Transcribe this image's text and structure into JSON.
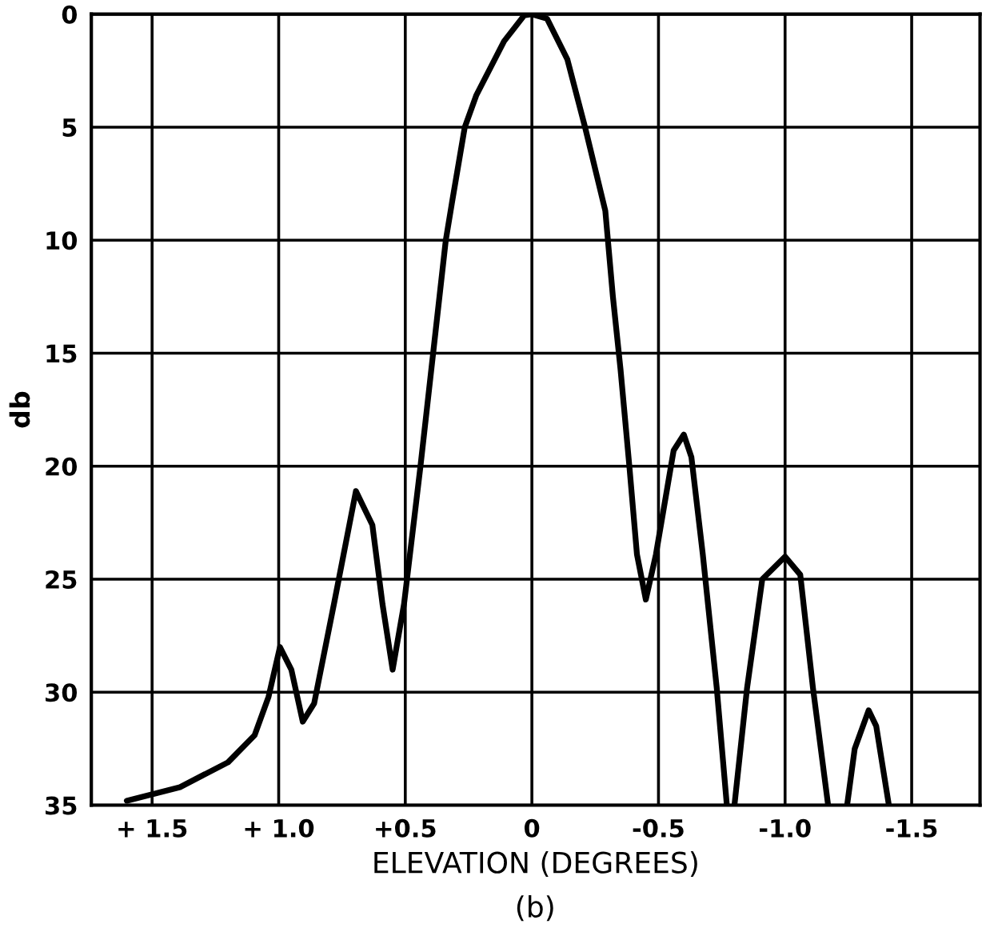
{
  "chart_data": {
    "type": "line",
    "xlabel": "ELEVATION (DEGREES)",
    "ylabel": "db",
    "annotations": [
      "(b)"
    ],
    "x": [
      1.6,
      1.39,
      1.2,
      1.095,
      1.04,
      0.995,
      0.95,
      0.905,
      0.86,
      0.78,
      0.695,
      0.63,
      0.59,
      0.55,
      0.505,
      0.44,
      0.39,
      0.34,
      0.315,
      0.265,
      0.22,
      0.11,
      0.03,
      0.0,
      -0.06,
      -0.14,
      -0.21,
      -0.29,
      -0.32,
      -0.35,
      -0.385,
      -0.415,
      -0.45,
      -0.49,
      -0.56,
      -0.6,
      -0.63,
      -0.675,
      -0.73,
      -0.77,
      -0.785,
      -0.8,
      -0.85,
      -0.91,
      -1.0,
      -1.06,
      -1.11,
      -1.17,
      -1.21,
      -1.245,
      -1.275,
      -1.33,
      -1.36,
      -1.41
    ],
    "series": [
      {
        "color": "#000000",
        "values": [
          34.8,
          34.2,
          33.1,
          31.9,
          30.2,
          28.0,
          29.0,
          31.3,
          30.5,
          26.0,
          21.1,
          22.6,
          26.1,
          29.0,
          26.1,
          20.0,
          15.0,
          10.0,
          8.3,
          5.0,
          3.6,
          1.2,
          0.05,
          0.0,
          0.2,
          2.0,
          5.0,
          8.7,
          12.5,
          15.7,
          20.0,
          23.9,
          25.9,
          23.9,
          19.3,
          18.6,
          19.6,
          23.9,
          29.8,
          35.0,
          null,
          35.0,
          29.8,
          25.0,
          24.0,
          24.8,
          29.8,
          35.0,
          null,
          35.0,
          32.5,
          30.8,
          31.5,
          35.0
        ]
      }
    ],
    "xlim": [
      1.74,
      -1.77
    ],
    "ylim": [
      35,
      0
    ],
    "xticks": [
      {
        "value": 1.5,
        "label": "+ 1.5"
      },
      {
        "value": 1.0,
        "label": "+ 1.0"
      },
      {
        "value": 0.5,
        "label": "+0.5"
      },
      0,
      {
        "value": -0.5,
        "label": "-0.5"
      },
      {
        "value": -1.0,
        "label": "-1.0"
      },
      {
        "value": -1.5,
        "label": "-1.5"
      }
    ],
    "yticks": [
      0,
      5,
      10,
      15,
      20,
      25,
      30,
      35
    ],
    "grid": true,
    "line_style": "solid",
    "marker": "none",
    "legend": false
  }
}
